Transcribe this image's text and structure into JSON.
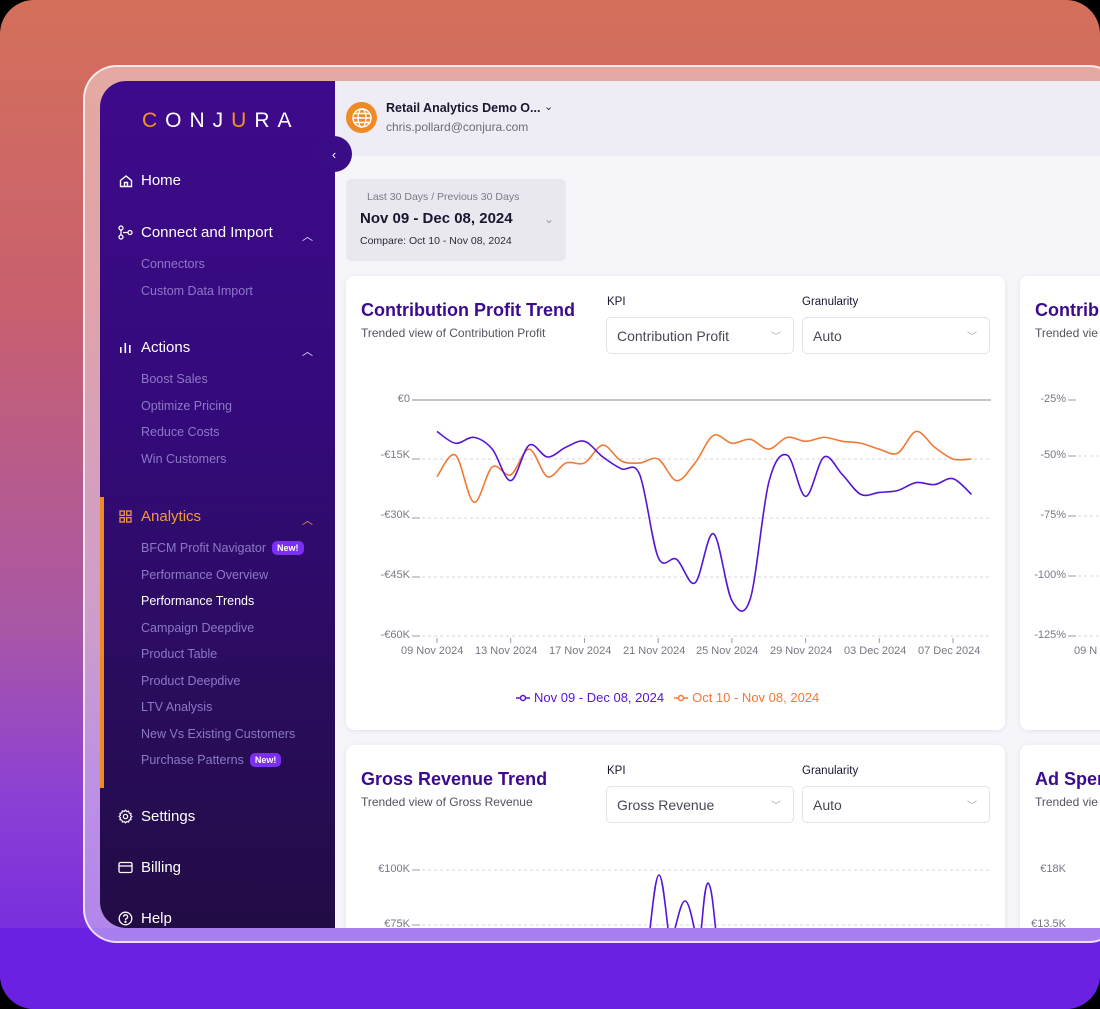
{
  "sidebar": {
    "logo": "CONJURA",
    "collapse_icon": "chevron-left-icon",
    "items": [
      {
        "label": "Home",
        "icon": "home-icon"
      },
      {
        "label": "Connect and Import",
        "icon": "connect-icon",
        "expanded": true,
        "children": [
          "Connectors",
          "Custom Data Import"
        ]
      },
      {
        "label": "Actions",
        "icon": "bar-chart-icon",
        "expanded": true,
        "children": [
          "Boost Sales",
          "Optimize Pricing",
          "Reduce Costs",
          "Win Customers"
        ]
      },
      {
        "label": "Analytics",
        "icon": "grid-icon",
        "expanded": true,
        "active": true,
        "children": [
          "BFCM Profit Navigator",
          "Performance Overview",
          "Performance Trends",
          "Campaign Deepdive",
          "Product Table",
          "Product Deepdive",
          "LTV Analysis",
          "New Vs Existing Customers",
          "Purchase Patterns"
        ]
      },
      {
        "label": "Settings",
        "icon": "gear-icon"
      },
      {
        "label": "Billing",
        "icon": "credit-card-icon"
      },
      {
        "label": "Help",
        "icon": "help-icon"
      }
    ],
    "badges": {
      "bfcm": "New!",
      "purchase_patterns": "New!"
    },
    "active_child": "Performance Trends"
  },
  "header": {
    "org_name": "Retail Analytics Demo O...",
    "user_email": "chris.pollard@conjura.com"
  },
  "date_picker": {
    "preset": "Last 30 Days / Previous 30 Days",
    "range": "Nov 09 - Dec 08, 2024",
    "compare": "Compare: Oct 10 - Nov 08, 2024"
  },
  "cards": {
    "contribution": {
      "title": "Contribution Profit Trend",
      "subtitle": "Trended view of Contribution Profit",
      "kpi_label": "KPI",
      "kpi_value": "Contribution Profit",
      "granularity_label": "Granularity",
      "granularity_value": "Auto"
    },
    "contribution_margin_partial": {
      "title": "Contrib",
      "subtitle": "Trended vie",
      "y_ticks": [
        "-25%",
        "-50%",
        "-75%",
        "-100%",
        "-125%"
      ],
      "x_first": "09 N"
    },
    "gross_revenue": {
      "title": "Gross Revenue Trend",
      "subtitle": "Trended view of Gross Revenue",
      "kpi_label": "KPI",
      "kpi_value": "Gross Revenue",
      "granularity_label": "Granularity",
      "granularity_value": "Auto",
      "y_ticks": [
        "€100K",
        "€75K"
      ]
    },
    "ad_spend_partial": {
      "title": "Ad Sper",
      "subtitle": "Trended vie",
      "y_ticks": [
        "€18K",
        "€13.5K"
      ]
    }
  },
  "chart_data": [
    {
      "type": "line",
      "title": "Contribution Profit Trend",
      "xlabel": "",
      "ylabel": "Contribution Profit",
      "ylim": [
        -60000,
        0
      ],
      "y_ticks": [
        "€0",
        "-€15K",
        "-€30K",
        "-€45K",
        "-€60K"
      ],
      "x_ticks": [
        "09 Nov 2024",
        "13 Nov 2024",
        "17 Nov 2024",
        "21 Nov 2024",
        "25 Nov 2024",
        "29 Nov 2024",
        "03 Dec 2024",
        "07 Dec 2024"
      ],
      "grid": true,
      "legend_position": "bottom",
      "x_day_offsets": [
        0,
        1,
        2,
        3,
        4,
        5,
        6,
        7,
        8,
        9,
        10,
        11,
        12,
        13,
        14,
        15,
        16,
        17,
        18,
        19,
        20,
        21,
        22,
        23,
        24,
        25,
        26,
        27,
        28,
        29
      ],
      "series": [
        {
          "name": "Nov 09 - Dec 08, 2024",
          "color": "#5514d6",
          "values": [
            -8000,
            -11000,
            -9500,
            -12500,
            -20500,
            -11500,
            -14500,
            -12000,
            -10500,
            -14500,
            -17500,
            -19000,
            -40000,
            -40500,
            -46500,
            -34000,
            -51000,
            -50500,
            -21000,
            -14000,
            -24500,
            -14500,
            -19000,
            -24000,
            -23500,
            -23000,
            -21000,
            -21500,
            -20000,
            -24000
          ]
        },
        {
          "name": "Oct 10 - Nov 08, 2024",
          "color": "#ef7a36",
          "values": [
            -19500,
            -14000,
            -26000,
            -17000,
            -19000,
            -12500,
            -19500,
            -16000,
            -16000,
            -11500,
            -15500,
            -16000,
            -15000,
            -20500,
            -16000,
            -9000,
            -11000,
            -10000,
            -12500,
            -9500,
            -10500,
            -9500,
            -10500,
            -11000,
            -12500,
            -13500,
            -8000,
            -12000,
            -15000,
            -15000
          ]
        }
      ]
    },
    {
      "type": "line",
      "title": "Gross Revenue Trend",
      "ylabel": "Gross Revenue",
      "y_ticks": [
        "€100K",
        "€75K"
      ],
      "series": [
        {
          "name": "Nov 09 - Dec 08, 2024",
          "color": "#5514d6",
          "visible_peaks": [
            98000,
            90000,
            96000
          ]
        }
      ]
    }
  ]
}
